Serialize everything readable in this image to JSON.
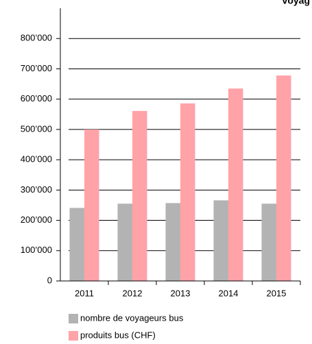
{
  "chart_data": {
    "type": "bar",
    "title": "voyag",
    "categories": [
      "2011",
      "2012",
      "2013",
      "2014",
      "2015"
    ],
    "series": [
      {
        "name": "nombre de voyageurs bus",
        "color": "#b3b3b3",
        "values": [
          241000,
          255000,
          257000,
          266000,
          255000
        ]
      },
      {
        "name": "produits bus (CHF)",
        "color": "#ffa3a8",
        "values": [
          500000,
          561000,
          586000,
          635000,
          678000
        ]
      }
    ],
    "ylim": [
      0,
      900000
    ],
    "yticks": [
      0,
      {
        "value": 100000,
        "label": "100’000"
      },
      {
        "value": 200000,
        "label": "200’000"
      },
      {
        "value": 300000,
        "label": "300’000"
      },
      {
        "value": 400000,
        "label": "400’000"
      },
      {
        "value": 500000,
        "label": "500’000"
      },
      {
        "value": 600000,
        "label": "600’000"
      },
      {
        "value": 700000,
        "label": "700’000"
      },
      {
        "value": 800000,
        "label": "800’000"
      }
    ],
    "grid": true
  }
}
